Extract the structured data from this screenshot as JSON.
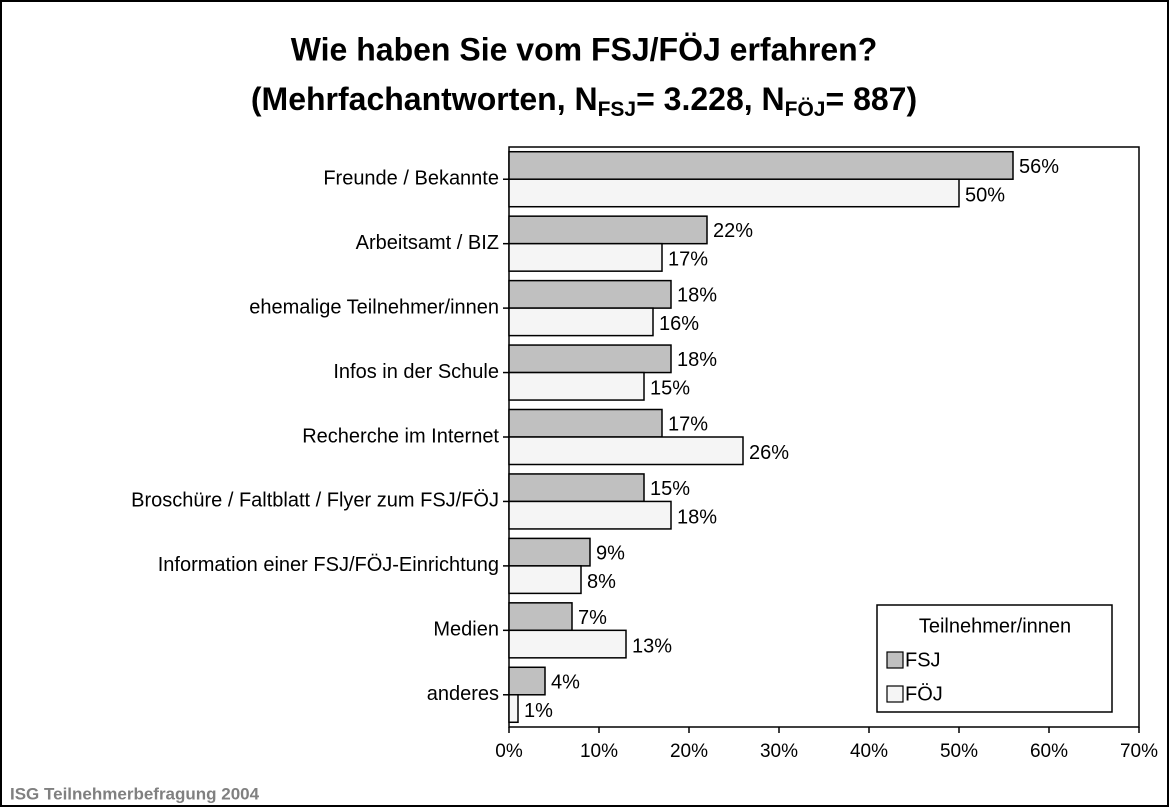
{
  "chart_data": {
    "type": "bar",
    "orientation": "horizontal",
    "title": "Wie haben Sie vom FSJ/FÖJ erfahren?",
    "subtitle_parts": [
      "(Mehrfachantworten, N",
      "FSJ",
      "= 3.228, N",
      "FÖJ",
      "= 887)"
    ],
    "categories": [
      "Freunde / Bekannte",
      "Arbeitsamt / BIZ",
      "ehemalige Teilnehmer/innen",
      "Infos in der Schule",
      "Recherche im Internet",
      "Broschüre / Faltblatt / Flyer zum FSJ/FÖJ",
      "Information einer FSJ/FÖJ-Einrichtung",
      "Medien",
      "anderes"
    ],
    "series": [
      {
        "name": "FSJ",
        "color": "#c0c0c0",
        "values": [
          56,
          22,
          18,
          18,
          17,
          15,
          9,
          7,
          4
        ],
        "value_labels": [
          "56%",
          "22%",
          "18%",
          "18%",
          "17%",
          "15%",
          "9%",
          "7%",
          "4%"
        ]
      },
      {
        "name": "FÖJ",
        "color": "#f5f5f5",
        "values": [
          50,
          17,
          16,
          15,
          26,
          18,
          8,
          13,
          1
        ],
        "value_labels": [
          "50%",
          "17%",
          "16%",
          "15%",
          "26%",
          "18%",
          "8%",
          "13%",
          "1%"
        ]
      }
    ],
    "xlim": [
      0,
      70
    ],
    "xticks": [
      {
        "value": 0,
        "label": "0%"
      },
      {
        "value": 10,
        "label": "10%"
      },
      {
        "value": 20,
        "label": "20%"
      },
      {
        "value": 30,
        "label": "30%"
      },
      {
        "value": 40,
        "label": "40%"
      },
      {
        "value": 50,
        "label": "50%"
      },
      {
        "value": 60,
        "label": "60%"
      },
      {
        "value": 70,
        "label": "70%"
      }
    ],
    "legend_title": "Teilnehmer/innen",
    "legend_position": "lower right",
    "source": "ISG Teilnehmerbefragung 2004"
  }
}
